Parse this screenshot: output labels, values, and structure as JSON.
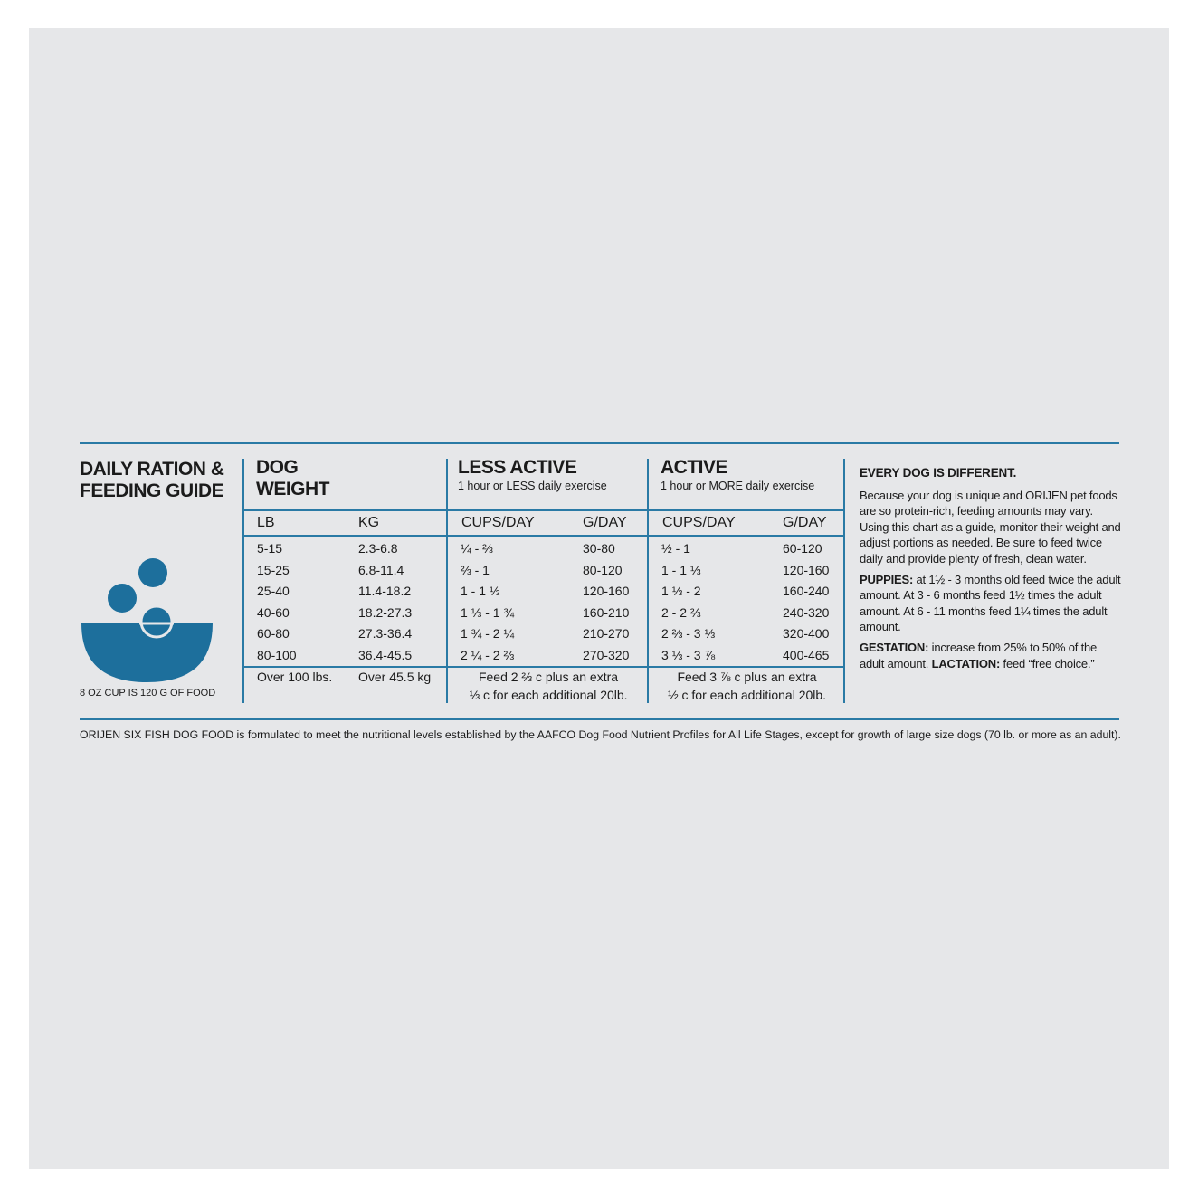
{
  "title": [
    "DAILY RATION &",
    "FEEDING GUIDE"
  ],
  "cup_note": "8 OZ CUP IS 120 G OF FOOD",
  "groups": [
    {
      "title": [
        "DOG",
        "WEIGHT"
      ],
      "subtitle": null,
      "columns": [
        "LB",
        "KG"
      ]
    },
    {
      "title": [
        "LESS ACTIVE"
      ],
      "subtitle": "1 hour or LESS daily exercise",
      "columns": [
        "CUPS/DAY",
        "G/DAY"
      ]
    },
    {
      "title": [
        "ACTIVE"
      ],
      "subtitle": "1 hour or MORE daily exercise",
      "columns": [
        "CUPS/DAY",
        "G/DAY"
      ]
    }
  ],
  "rows": [
    [
      "5-15",
      "2.3-6.8",
      "¼ - ⅔",
      "30-80",
      "½ - 1",
      "60-120"
    ],
    [
      "15-25",
      "6.8-11.4",
      "⅔ - 1",
      "80-120",
      "1 - 1 ⅓",
      "120-160"
    ],
    [
      "25-40",
      "11.4-18.2",
      "1 - 1 ⅓",
      "120-160",
      "1 ⅓ - 2",
      "160-240"
    ],
    [
      "40-60",
      "18.2-27.3",
      "1 ⅓ - 1 ¾",
      "160-210",
      "2 - 2 ⅔",
      "240-320"
    ],
    [
      "60-80",
      "27.3-36.4",
      "1 ¾ - 2 ¼",
      "210-270",
      "2 ⅔ - 3 ⅓",
      "320-400"
    ],
    [
      "80-100",
      "36.4-45.5",
      "2 ¼ - 2 ⅔",
      "270-320",
      "3 ⅓ - 3 ⅞",
      "400-465"
    ]
  ],
  "over_row": [
    "Over 100 lbs.",
    "Over 45.5 kg",
    [
      "Feed 2 ⅔ c plus an extra",
      "⅓ c for each additional 20lb."
    ],
    [
      "Feed 3 ⅞ c plus an extra",
      "½ c for each additional 20lb."
    ]
  ],
  "notes": {
    "heading": "EVERY DOG IS DIFFERENT.",
    "paragraphs": [
      {
        "lead": null,
        "text": "Because your dog is unique and ORIJEN pet foods are so protein-rich, feeding amounts may vary. Using this chart as a guide, monitor their weight and adjust portions as needed. Be sure to feed twice daily and provide plenty of fresh, clean water."
      },
      {
        "lead": "PUPPIES:",
        "text": "at 1½ - 3 months old feed twice the adult amount. At 3 - 6 months feed 1½ times the adult amount. At 6 - 11 months feed 1¼ times the adult amount."
      },
      {
        "lead": "GESTATION:",
        "text": "increase from 25% to 50% of the adult amount.",
        "lead2": "LACTATION:",
        "text2": "feed “free choice.”"
      }
    ]
  },
  "footer": "ORIJEN SIX FISH DOG FOOD is formulated to meet the nutritional levels established by the AAFCO Dog Food Nutrient Profiles for All Life Stages, except for growth of large size dogs (70 lb. or more as an adult)."
}
